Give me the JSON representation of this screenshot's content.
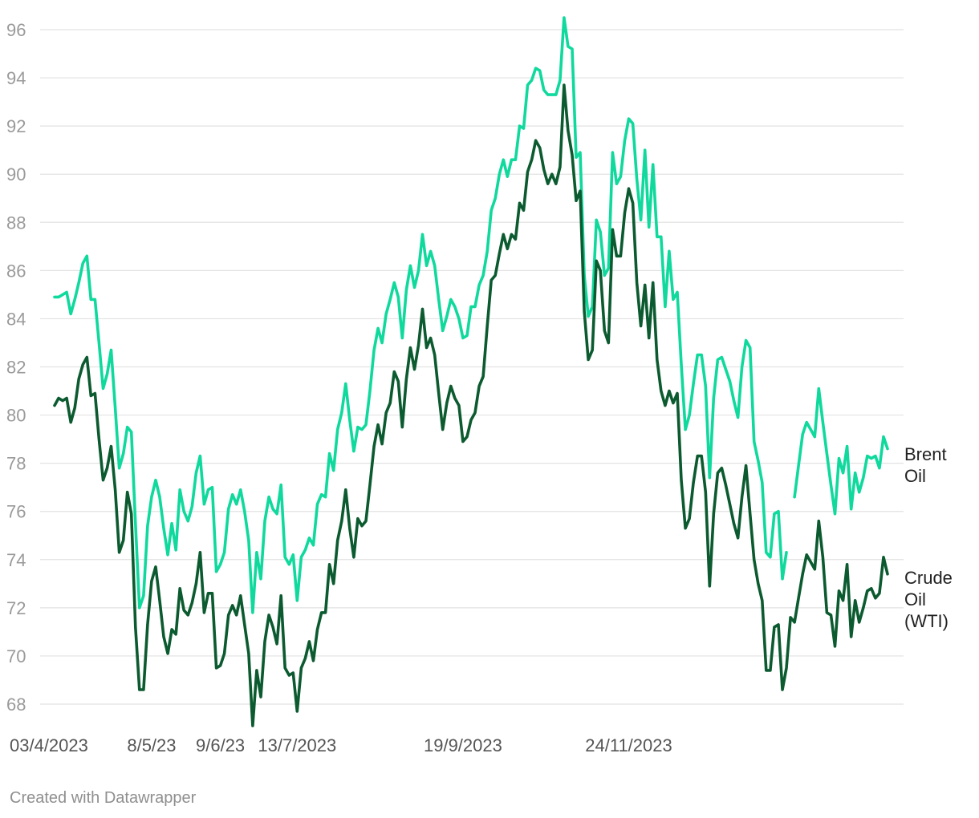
{
  "chart_data": {
    "type": "line",
    "x_tick_labels": [
      "03/4/2023",
      "8/5/23",
      "9/6/23",
      "13/7/2023",
      "19/9/2023",
      "24/11/2023"
    ],
    "x_tick_index": [
      0,
      24,
      41,
      60,
      101,
      142
    ],
    "ylim": [
      67,
      96.5
    ],
    "y_ticks": [
      68,
      70,
      72,
      74,
      76,
      78,
      80,
      82,
      84,
      86,
      88,
      90,
      92,
      94,
      96
    ],
    "grid": true,
    "legend": "direct-labels-right",
    "series": [
      {
        "name": "Brent Oil",
        "color": "#10d99d",
        "values": [
          84.9,
          84.9,
          85.0,
          85.1,
          84.2,
          84.8,
          85.5,
          86.3,
          86.6,
          84.8,
          84.8,
          83.0,
          81.1,
          81.7,
          82.7,
          80.3,
          77.8,
          78.4,
          79.5,
          79.3,
          75.5,
          72.0,
          72.5,
          75.4,
          76.6,
          77.3,
          76.6,
          75.3,
          74.2,
          75.5,
          74.4,
          76.9,
          76.0,
          75.6,
          76.2,
          77.6,
          78.3,
          76.3,
          76.9,
          77.0,
          73.5,
          73.8,
          74.3,
          76.1,
          76.7,
          76.3,
          76.9,
          76.0,
          74.8,
          71.8,
          74.3,
          73.2,
          75.6,
          76.6,
          76.1,
          75.9,
          77.1,
          74.1,
          73.8,
          74.2,
          72.3,
          74.1,
          74.4,
          74.9,
          74.6,
          76.3,
          76.7,
          76.6,
          78.4,
          77.7,
          79.4,
          80.1,
          81.3,
          79.8,
          78.5,
          79.5,
          79.4,
          79.6,
          81.0,
          82.7,
          83.6,
          83.0,
          84.2,
          84.8,
          85.5,
          84.9,
          83.2,
          85.2,
          86.2,
          85.3,
          86.0,
          87.5,
          86.2,
          86.8,
          86.2,
          84.8,
          83.5,
          84.1,
          84.8,
          84.5,
          84.0,
          83.2,
          83.3,
          84.5,
          84.5,
          85.4,
          85.8,
          86.8,
          88.5,
          89.0,
          90.0,
          90.6,
          89.9,
          90.6,
          90.6,
          92.0,
          91.9,
          93.7,
          93.9,
          94.4,
          94.3,
          93.5,
          93.3,
          93.3,
          93.3,
          93.9,
          96.5,
          95.3,
          95.2,
          90.7,
          90.9,
          85.8,
          84.1,
          84.5,
          88.1,
          87.6,
          85.8,
          86.1,
          90.9,
          89.6,
          89.9,
          91.4,
          92.3,
          92.1,
          89.8,
          88.1,
          91.0,
          87.8,
          90.4,
          87.4,
          87.4,
          84.5,
          86.8,
          84.8,
          85.1,
          82.1,
          79.4,
          80.0,
          81.3,
          82.5,
          82.5,
          81.2,
          77.4,
          80.7,
          82.3,
          82.4,
          81.9,
          81.4,
          80.6,
          79.9,
          82.0,
          83.1,
          82.8,
          78.9,
          78.1,
          77.2,
          74.3,
          74.1,
          75.9,
          76.0,
          73.2,
          74.3,
          null,
          76.6,
          77.9,
          79.2,
          79.7,
          79.4,
          79.1,
          81.1,
          79.7,
          78.4,
          77.1,
          75.9,
          78.2,
          77.6,
          78.7,
          76.1,
          77.6,
          76.8,
          77.4,
          78.3,
          78.2,
          78.3,
          77.8,
          79.1,
          78.6
        ]
      },
      {
        "name": "Crude Oil (WTI)",
        "color": "#0c5b30",
        "values": [
          80.4,
          80.7,
          80.6,
          80.7,
          79.7,
          80.3,
          81.5,
          82.1,
          82.4,
          80.8,
          80.9,
          79.0,
          77.3,
          77.8,
          78.7,
          76.9,
          74.3,
          74.8,
          76.8,
          75.9,
          71.2,
          68.6,
          68.6,
          71.3,
          73.1,
          73.7,
          72.3,
          70.8,
          70.1,
          71.1,
          70.9,
          72.8,
          71.9,
          71.7,
          72.2,
          73.0,
          74.3,
          71.8,
          72.6,
          72.6,
          69.5,
          69.6,
          70.1,
          71.7,
          72.1,
          71.7,
          72.5,
          71.3,
          70.1,
          67.1,
          69.4,
          68.3,
          70.6,
          71.7,
          71.2,
          70.5,
          72.5,
          69.5,
          69.2,
          69.3,
          67.7,
          69.5,
          69.9,
          70.6,
          69.8,
          71.1,
          71.8,
          71.8,
          73.8,
          73.0,
          74.8,
          75.6,
          76.9,
          75.3,
          74.1,
          75.7,
          75.4,
          75.6,
          77.1,
          78.7,
          79.6,
          78.8,
          80.1,
          80.5,
          81.8,
          81.4,
          79.5,
          81.5,
          82.8,
          81.9,
          82.9,
          84.4,
          82.8,
          83.2,
          82.5,
          80.9,
          79.4,
          80.5,
          81.2,
          80.7,
          80.4,
          78.9,
          79.1,
          79.8,
          80.1,
          81.2,
          81.6,
          83.7,
          85.6,
          85.8,
          86.7,
          87.5,
          86.9,
          87.5,
          87.3,
          88.8,
          88.5,
          90.1,
          90.6,
          91.4,
          91.1,
          90.2,
          89.6,
          90.0,
          89.6,
          90.3,
          93.7,
          91.8,
          90.8,
          88.9,
          89.3,
          84.3,
          82.3,
          82.7,
          86.4,
          86.0,
          83.5,
          83.0,
          87.7,
          86.6,
          86.6,
          88.4,
          89.4,
          88.8,
          85.5,
          83.7,
          85.4,
          83.2,
          85.5,
          82.3,
          81.0,
          80.4,
          81.0,
          80.5,
          80.9,
          77.3,
          75.3,
          75.7,
          77.2,
          78.3,
          78.3,
          76.8,
          72.9,
          75.9,
          77.6,
          77.8,
          77.1,
          76.3,
          75.5,
          74.9,
          76.6,
          77.9,
          75.9,
          74.0,
          73.0,
          72.3,
          69.4,
          69.4,
          71.2,
          71.3,
          68.6,
          69.5,
          71.6,
          71.4,
          72.4,
          73.4,
          74.2,
          73.9,
          73.6,
          75.6,
          74.1,
          71.8,
          71.7,
          70.4,
          72.7,
          72.3,
          73.8,
          70.8,
          72.3,
          71.4,
          72.0,
          72.7,
          72.8,
          72.4,
          72.6,
          74.1,
          73.4
        ]
      }
    ]
  },
  "series_labels": {
    "brent_line1": "Brent",
    "brent_line2": "Oil",
    "wti_line1": "Crude",
    "wti_line2": "Oil",
    "wti_line3": "(WTI)"
  },
  "footer": "Created with Datawrapper"
}
